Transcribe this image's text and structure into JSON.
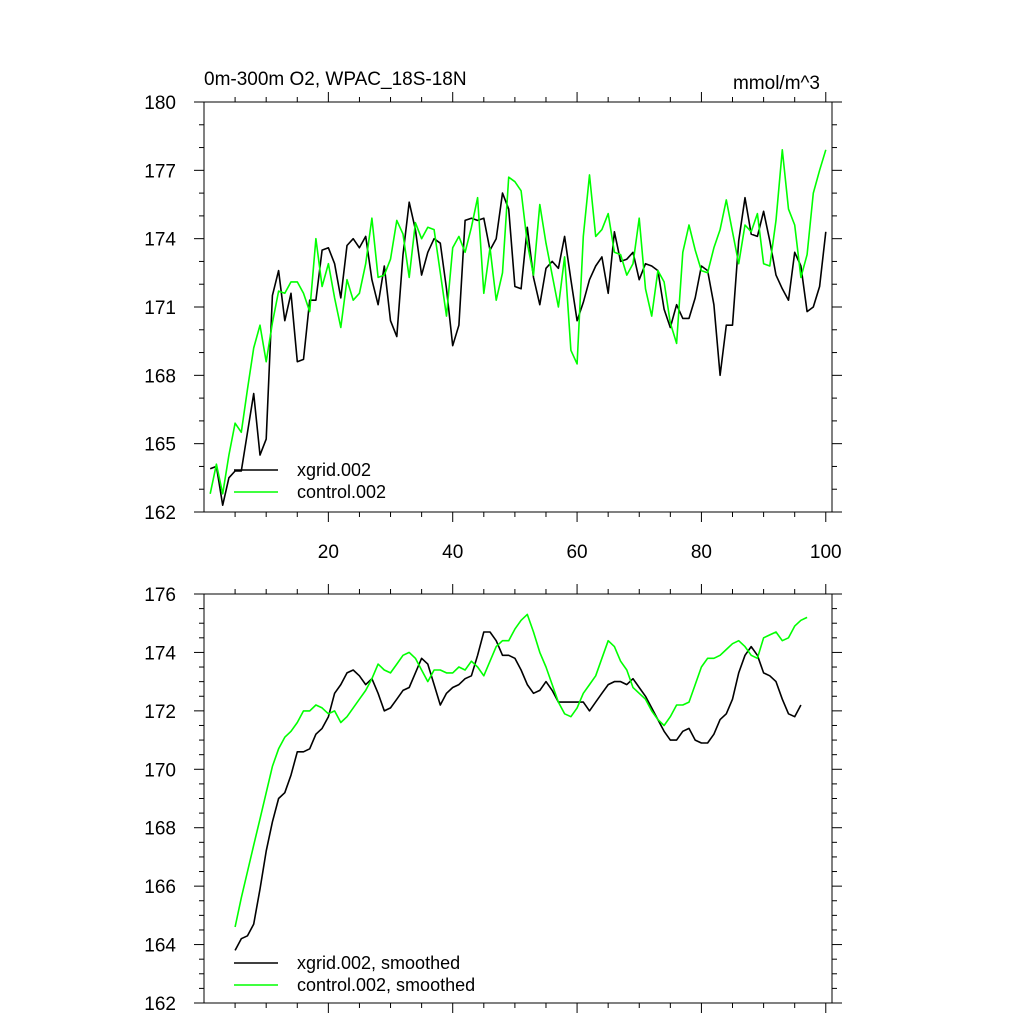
{
  "chart_data": [
    {
      "type": "line",
      "title_left": "0m-300m O2, WPAC_18S-18N",
      "title_right": "mmol/m^3",
      "xlabel": "",
      "ylabel": "",
      "xlim": [
        0,
        101
      ],
      "ylim": [
        162,
        180
      ],
      "xticks": [
        20,
        40,
        60,
        80,
        100
      ],
      "xtick_labels": [
        "20",
        "40",
        "60",
        "80",
        "100"
      ],
      "yticks": [
        162,
        165,
        168,
        171,
        174,
        177,
        180
      ],
      "ytick_labels": [
        "162",
        "165",
        "168",
        "171",
        "174",
        "177",
        "180"
      ],
      "legend_position": "bottom-left",
      "series": [
        {
          "name": "xgrid.002",
          "color": "#000000",
          "x_start": 1,
          "values": [
            163.9,
            164.0,
            162.3,
            163.5,
            163.8,
            163.8,
            165.5,
            167.2,
            164.5,
            165.2,
            171.5,
            172.6,
            170.4,
            171.6,
            168.6,
            168.7,
            171.3,
            171.3,
            173.5,
            173.6,
            172.9,
            171.4,
            173.7,
            174.0,
            173.6,
            174.1,
            172.2,
            171.1,
            172.8,
            170.4,
            169.7,
            173.3,
            175.6,
            174.4,
            172.4,
            173.4,
            174.0,
            173.8,
            171.8,
            169.3,
            170.2,
            174.8,
            174.9,
            174.8,
            174.9,
            173.5,
            174.0,
            176.0,
            175.3,
            171.9,
            171.8,
            174.5,
            172.3,
            171.1,
            172.7,
            173.0,
            172.7,
            174.1,
            172.2,
            170.4,
            171.2,
            172.2,
            172.8,
            173.2,
            171.6,
            174.3,
            173.0,
            173.1,
            173.4,
            172.2,
            172.9,
            172.8,
            172.6,
            170.9,
            170.1,
            171.1,
            170.5,
            170.5,
            171.4,
            172.8,
            172.6,
            171.1,
            168.0,
            170.2,
            170.2,
            173.9,
            175.8,
            174.2,
            174.1,
            175.2,
            173.9,
            172.4,
            171.8,
            171.3,
            173.4,
            172.8,
            170.8,
            171.0,
            171.9,
            174.3
          ]
        },
        {
          "name": "control.002",
          "color": "#00ff00",
          "x_start": 1,
          "values": [
            162.8,
            164.1,
            162.8,
            164.5,
            165.9,
            165.5,
            167.4,
            169.2,
            170.2,
            168.6,
            170.3,
            171.7,
            171.6,
            172.1,
            172.1,
            171.6,
            170.8,
            174.0,
            171.9,
            172.9,
            171.4,
            170.1,
            172.2,
            171.3,
            171.6,
            172.9,
            174.9,
            172.3,
            172.4,
            173.1,
            174.8,
            174.2,
            172.3,
            174.7,
            174.0,
            174.5,
            174.4,
            172.5,
            170.6,
            173.6,
            174.1,
            173.4,
            174.5,
            175.8,
            171.6,
            173.6,
            171.3,
            172.5,
            176.7,
            176.5,
            176.1,
            173.8,
            172.4,
            175.5,
            173.8,
            172.4,
            171.0,
            173.2,
            169.1,
            168.5,
            174.1,
            176.8,
            174.1,
            174.4,
            175.1,
            173.4,
            173.3,
            172.4,
            172.9,
            174.9,
            171.8,
            170.6,
            172.6,
            172.1,
            170.3,
            169.4,
            173.4,
            174.6,
            173.5,
            172.6,
            172.5,
            173.6,
            174.4,
            175.7,
            174.3,
            172.9,
            174.6,
            174.3,
            175.1,
            172.9,
            172.8,
            174.8,
            177.9,
            175.3,
            174.6,
            172.3,
            173.3,
            176.0,
            177.0,
            177.9
          ]
        }
      ]
    },
    {
      "type": "line",
      "title_left": "",
      "title_right": "",
      "xlabel": "",
      "ylabel": "",
      "xlim": [
        0,
        101
      ],
      "ylim": [
        162,
        176
      ],
      "xticks": [
        20,
        40,
        60,
        80,
        100
      ],
      "xtick_labels": [],
      "yticks": [
        162,
        164,
        166,
        168,
        170,
        172,
        174,
        176
      ],
      "ytick_labels": [
        "162",
        "164",
        "166",
        "168",
        "170",
        "172",
        "174",
        "176"
      ],
      "legend_position": "bottom-left",
      "series": [
        {
          "name": "xgrid.002, smoothed",
          "color": "#000000",
          "x_start": 5,
          "values": [
            163.8,
            164.2,
            164.3,
            164.7,
            165.9,
            167.2,
            168.2,
            169.0,
            169.2,
            169.8,
            170.6,
            170.6,
            170.7,
            171.2,
            171.4,
            171.8,
            172.6,
            172.9,
            173.3,
            173.4,
            173.2,
            172.9,
            173.1,
            172.6,
            172.0,
            172.1,
            172.4,
            172.7,
            172.8,
            173.3,
            173.8,
            173.6,
            172.9,
            172.2,
            172.6,
            172.8,
            172.9,
            173.1,
            173.2,
            173.9,
            174.7,
            174.7,
            174.4,
            173.9,
            173.9,
            173.8,
            173.4,
            172.9,
            172.6,
            172.7,
            173.0,
            172.7,
            172.3,
            172.3,
            172.3,
            172.3,
            172.3,
            172.0,
            172.3,
            172.6,
            172.9,
            173.0,
            173.0,
            172.9,
            173.1,
            172.8,
            172.5,
            172.1,
            171.7,
            171.3,
            171.0,
            171.0,
            171.3,
            171.4,
            171.0,
            170.9,
            170.9,
            171.2,
            171.7,
            171.9,
            172.4,
            173.3,
            173.9,
            174.2,
            173.9,
            173.3,
            173.2,
            173.0,
            172.4,
            171.9,
            171.8,
            172.2
          ]
        },
        {
          "name": "control.002, smoothed",
          "color": "#00ff00",
          "x_start": 5,
          "values": [
            164.6,
            165.6,
            166.5,
            167.4,
            168.3,
            169.2,
            170.1,
            170.7,
            171.1,
            171.3,
            171.6,
            172.0,
            172.0,
            172.2,
            172.1,
            171.9,
            172.0,
            171.6,
            171.8,
            172.1,
            172.4,
            172.7,
            173.1,
            173.6,
            173.4,
            173.3,
            173.6,
            173.9,
            174.0,
            173.8,
            173.4,
            173.0,
            173.4,
            173.4,
            173.3,
            173.3,
            173.5,
            173.4,
            173.7,
            173.5,
            173.2,
            173.7,
            174.2,
            174.4,
            174.4,
            174.8,
            175.1,
            175.3,
            174.7,
            174.0,
            173.5,
            172.9,
            172.3,
            171.9,
            171.8,
            172.1,
            172.6,
            172.9,
            173.2,
            173.8,
            174.4,
            174.2,
            173.7,
            173.4,
            172.8,
            172.6,
            172.4,
            172.0,
            171.7,
            171.5,
            171.8,
            172.2,
            172.2,
            172.3,
            172.9,
            173.5,
            173.8,
            173.8,
            173.9,
            174.1,
            174.3,
            174.4,
            174.2,
            173.9,
            173.8,
            174.5,
            174.6,
            174.7,
            174.4,
            174.5,
            174.9,
            175.1,
            175.2
          ]
        }
      ]
    }
  ]
}
